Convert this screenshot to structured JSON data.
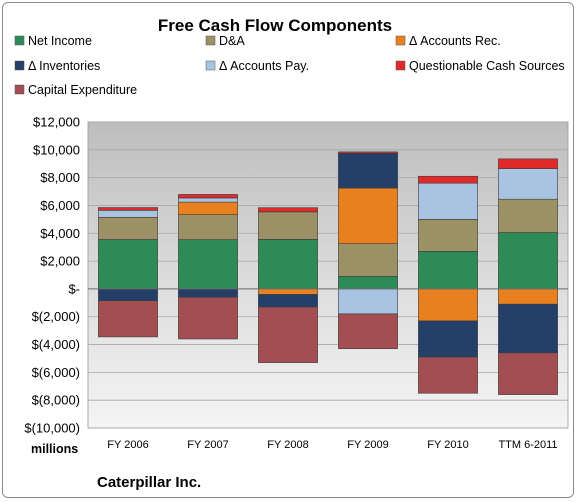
{
  "chart_data": {
    "type": "bar",
    "stacked": true,
    "title": "Free Cash Flow Components",
    "unit_label": "millions",
    "company": "Caterpillar Inc.",
    "categories": [
      "FY 2006",
      "FY 2007",
      "FY 2008",
      "FY 2009",
      "FY 2010",
      "TTM 6-2011"
    ],
    "ylim": [
      -10000,
      12000
    ],
    "ytick_values": [
      -10000,
      -8000,
      -6000,
      -4000,
      -2000,
      0,
      2000,
      4000,
      6000,
      8000,
      10000,
      12000
    ],
    "ytick_labels": [
      "$(10,000)",
      "$(8,000)",
      "$(6,000)",
      "$(4,000)",
      "$(2,000)",
      "$-",
      "$2,000",
      "$4,000",
      "$6,000",
      "$8,000",
      "$10,000",
      "$12,000"
    ],
    "grid": true,
    "legend_position": "top",
    "series": [
      {
        "name": "Net Income",
        "color": "#2e8b57",
        "values": [
          3550,
          3540,
          3560,
          900,
          2700,
          4050
        ]
      },
      {
        "name": "D&A",
        "color": "#9b9164",
        "values": [
          1600,
          1800,
          1980,
          2350,
          2300,
          2400
        ]
      },
      {
        "name": "Δ Accounts Rec.",
        "color": "#e9801f",
        "values": [
          0,
          900,
          -400,
          4000,
          -2300,
          -1100
        ]
      },
      {
        "name": "Δ Inventories",
        "color": "#243f68",
        "values": [
          -850,
          -600,
          -900,
          2500,
          -2600,
          -3500
        ]
      },
      {
        "name": "Δ Accounts Pay.",
        "color": "#a9c3e3",
        "values": [
          500,
          300,
          0,
          -1800,
          2600,
          2200
        ]
      },
      {
        "name": "Questionable Cash Sources",
        "color": "#e02a2a",
        "values": [
          200,
          250,
          300,
          100,
          500,
          700
        ]
      },
      {
        "name": "Capital Expenditure",
        "color": "#a24e53",
        "values": [
          -2600,
          -3000,
          -4000,
          -2500,
          -2600,
          -3000
        ]
      }
    ]
  }
}
